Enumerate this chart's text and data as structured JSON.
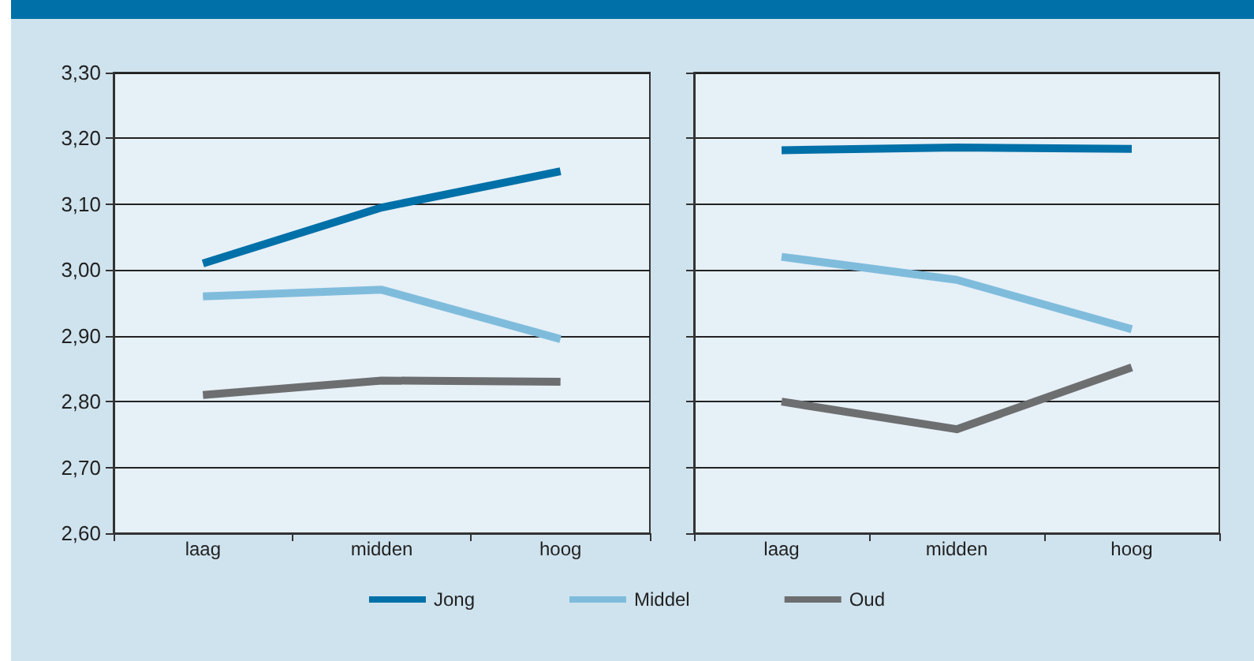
{
  "chart_data": [
    {
      "type": "line",
      "categories": [
        "laag",
        "midden",
        "hoog"
      ],
      "series": [
        {
          "name": "Jong",
          "color": "#0070a8",
          "values": [
            3.01,
            3.095,
            3.15
          ]
        },
        {
          "name": "Middel",
          "color": "#7fbcdc",
          "values": [
            2.96,
            2.97,
            2.895
          ]
        },
        {
          "name": "Oud",
          "color": "#6d6e70",
          "values": [
            2.81,
            2.832,
            2.83
          ]
        }
      ],
      "ylim": [
        2.6,
        3.3
      ],
      "yticks": [
        {
          "value": 2.6,
          "label": "2,60"
        },
        {
          "value": 2.7,
          "label": "2,70"
        },
        {
          "value": 2.8,
          "label": "2,80"
        },
        {
          "value": 2.9,
          "label": "2,90"
        },
        {
          "value": 3.0,
          "label": "3,00"
        },
        {
          "value": 3.1,
          "label": "3,10"
        },
        {
          "value": 3.2,
          "label": "3,20"
        },
        {
          "value": 3.3,
          "label": "3,30"
        }
      ],
      "grid": "y",
      "legend": "bottom",
      "marker": "none",
      "line_style": "solid"
    },
    {
      "type": "line",
      "categories": [
        "laag",
        "midden",
        "hoog"
      ],
      "series": [
        {
          "color": "#0070a8",
          "values": [
            3.182,
            3.186,
            3.184
          ]
        },
        {
          "color": "#7fbcdc",
          "values": [
            3.02,
            2.985,
            2.91
          ]
        },
        {
          "color": "#6d6e70",
          "values": [
            2.8,
            2.758,
            2.852
          ]
        }
      ],
      "ylim": [
        2.6,
        3.3
      ],
      "yticks": [
        {
          "value": 2.6,
          "label": null
        },
        {
          "value": 2.7,
          "label": null
        },
        {
          "value": 2.8,
          "label": null
        },
        {
          "value": 2.9,
          "label": null
        },
        {
          "value": 3.0,
          "label": null
        },
        {
          "value": 3.1,
          "label": null
        },
        {
          "value": 3.2,
          "label": null
        },
        {
          "value": 3.3,
          "label": null
        }
      ],
      "grid": "y",
      "tick_labels": "x",
      "marker": "none",
      "line_style": "solid"
    }
  ]
}
